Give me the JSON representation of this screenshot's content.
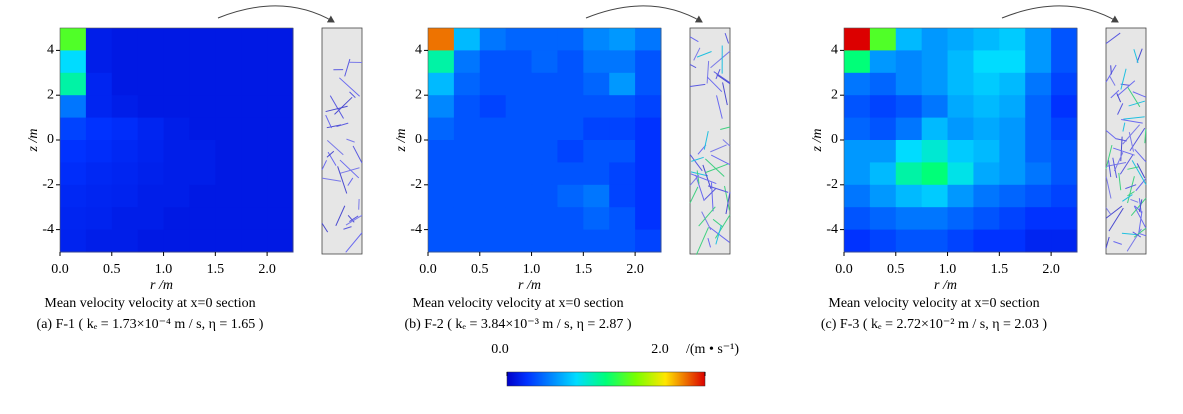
{
  "chart_data": [
    {
      "type": "heatmap",
      "x_label": "r /m",
      "y_label": "z /m",
      "caption": "Mean velocity    velocity at x=0 section",
      "subcaption": "(a) F-1 ( kₑ = 1.73×10⁻⁴ m / s, η = 1.65 )",
      "xlim": [
        0,
        2.25
      ],
      "ylim": [
        -5,
        5
      ],
      "xticks": [
        {
          "value": 0,
          "label": "0.0"
        },
        0.5,
        {
          "value": 1,
          "label": "1.0"
        },
        1.5,
        {
          "value": 2,
          "label": "2.0"
        }
      ],
      "yticks": [
        -4,
        -2,
        0,
        2,
        4
      ],
      "x": [
        0.125,
        0.375,
        0.625,
        0.875,
        1.125,
        1.375,
        1.625,
        1.875,
        2.125
      ],
      "y": [
        4.5,
        3.5,
        2.5,
        1.5,
        0.5,
        -0.5,
        -1.5,
        -2.5,
        -3.5,
        -4.5
      ],
      "values": [
        [
          1.2,
          0.12,
          0.1,
          0.1,
          0.1,
          0.1,
          0.1,
          0.1,
          0.1
        ],
        [
          0.7,
          0.12,
          0.1,
          0.1,
          0.1,
          0.1,
          0.1,
          0.1,
          0.1
        ],
        [
          0.9,
          0.15,
          0.1,
          0.1,
          0.1,
          0.1,
          0.1,
          0.1,
          0.1
        ],
        [
          0.4,
          0.15,
          0.12,
          0.1,
          0.1,
          0.1,
          0.1,
          0.1,
          0.1
        ],
        [
          0.25,
          0.2,
          0.18,
          0.15,
          0.12,
          0.1,
          0.1,
          0.1,
          0.1
        ],
        [
          0.2,
          0.18,
          0.16,
          0.14,
          0.12,
          0.12,
          0.1,
          0.1,
          0.1
        ],
        [
          0.18,
          0.16,
          0.15,
          0.13,
          0.12,
          0.12,
          0.1,
          0.1,
          0.1
        ],
        [
          0.16,
          0.15,
          0.14,
          0.12,
          0.12,
          0.1,
          0.1,
          0.1,
          0.1
        ],
        [
          0.15,
          0.14,
          0.12,
          0.12,
          0.1,
          0.1,
          0.1,
          0.1,
          0.1
        ],
        [
          0.14,
          0.12,
          0.12,
          0.1,
          0.1,
          0.1,
          0.1,
          0.1,
          0.1
        ]
      ]
    },
    {
      "type": "heatmap",
      "x_label": "r /m",
      "y_label": "z /m",
      "caption": "Mean velocity    velocity at x=0 section",
      "subcaption": "(b) F-2 ( kₑ = 3.84×10⁻³ m / s, η = 2.87 )",
      "xlim": [
        0,
        2.25
      ],
      "ylim": [
        -5,
        5
      ],
      "xticks": [
        {
          "value": 0,
          "label": "0.0"
        },
        0.5,
        {
          "value": 1,
          "label": "1.0"
        },
        1.5,
        {
          "value": 2,
          "label": "2.0"
        }
      ],
      "yticks": [
        -4,
        -2,
        0,
        2,
        4
      ],
      "x": [
        0.125,
        0.375,
        0.625,
        0.875,
        1.125,
        1.375,
        1.625,
        1.875,
        2.125
      ],
      "y": [
        4.5,
        3.5,
        2.5,
        1.5,
        0.5,
        -0.5,
        -1.5,
        -2.5,
        -3.5,
        -4.5
      ],
      "values": [
        [
          1.8,
          0.6,
          0.4,
          0.35,
          0.35,
          0.35,
          0.45,
          0.5,
          0.4
        ],
        [
          0.9,
          0.4,
          0.3,
          0.3,
          0.35,
          0.3,
          0.4,
          0.4,
          0.3
        ],
        [
          0.6,
          0.35,
          0.3,
          0.3,
          0.3,
          0.3,
          0.35,
          0.5,
          0.3
        ],
        [
          0.45,
          0.3,
          0.25,
          0.3,
          0.3,
          0.3,
          0.3,
          0.3,
          0.25
        ],
        [
          0.35,
          0.3,
          0.3,
          0.3,
          0.3,
          0.3,
          0.25,
          0.25,
          0.2
        ],
        [
          0.3,
          0.3,
          0.3,
          0.3,
          0.3,
          0.25,
          0.3,
          0.3,
          0.2
        ],
        [
          0.3,
          0.3,
          0.3,
          0.3,
          0.3,
          0.3,
          0.3,
          0.25,
          0.2
        ],
        [
          0.3,
          0.3,
          0.3,
          0.3,
          0.3,
          0.35,
          0.4,
          0.25,
          0.2
        ],
        [
          0.3,
          0.3,
          0.3,
          0.3,
          0.3,
          0.3,
          0.35,
          0.3,
          0.2
        ],
        [
          0.3,
          0.3,
          0.3,
          0.3,
          0.3,
          0.3,
          0.3,
          0.3,
          0.25
        ]
      ]
    },
    {
      "type": "heatmap",
      "x_label": "r /m",
      "y_label": "z /m",
      "caption": "Mean velocity    velocity at x=0 section",
      "subcaption": "(c) F-3 ( kₑ = 2.72×10⁻² m / s, η = 2.03 )",
      "xlim": [
        0,
        2.25
      ],
      "ylim": [
        -5,
        5
      ],
      "xticks": [
        {
          "value": 0,
          "label": "0.0"
        },
        0.5,
        {
          "value": 1,
          "label": "1.0"
        },
        1.5,
        {
          "value": 2,
          "label": "2.0"
        }
      ],
      "yticks": [
        -4,
        -2,
        0,
        2,
        4
      ],
      "x": [
        0.125,
        0.375,
        0.625,
        0.875,
        1.125,
        1.375,
        1.625,
        1.875,
        2.125
      ],
      "y": [
        4.5,
        3.5,
        2.5,
        1.5,
        0.5,
        -0.5,
        -1.5,
        -2.5,
        -3.5,
        -4.5
      ],
      "values": [
        [
          2.0,
          1.2,
          0.6,
          0.5,
          0.55,
          0.6,
          0.65,
          0.5,
          0.3
        ],
        [
          1.0,
          0.5,
          0.45,
          0.5,
          0.6,
          0.7,
          0.7,
          0.5,
          0.3
        ],
        [
          0.4,
          0.35,
          0.45,
          0.5,
          0.6,
          0.65,
          0.6,
          0.4,
          0.25
        ],
        [
          0.3,
          0.25,
          0.3,
          0.4,
          0.55,
          0.6,
          0.55,
          0.35,
          0.2
        ],
        [
          0.35,
          0.3,
          0.4,
          0.6,
          0.5,
          0.55,
          0.5,
          0.35,
          0.25
        ],
        [
          0.5,
          0.5,
          0.7,
          0.8,
          0.65,
          0.6,
          0.5,
          0.35,
          0.3
        ],
        [
          0.5,
          0.6,
          0.9,
          1.0,
          0.75,
          0.55,
          0.5,
          0.4,
          0.3
        ],
        [
          0.4,
          0.5,
          0.6,
          0.65,
          0.5,
          0.4,
          0.35,
          0.3,
          0.25
        ],
        [
          0.3,
          0.35,
          0.4,
          0.4,
          0.35,
          0.3,
          0.25,
          0.2,
          0.2
        ],
        [
          0.2,
          0.25,
          0.3,
          0.3,
          0.25,
          0.2,
          0.2,
          0.15,
          0.15
        ]
      ]
    }
  ],
  "colorbar": {
    "lim": [
      0,
      2
    ],
    "ticks": [
      {
        "value": 0,
        "label": "0.0"
      },
      {
        "value": 2,
        "label": "2.0"
      }
    ],
    "unit": "/(m • s⁻¹)"
  }
}
